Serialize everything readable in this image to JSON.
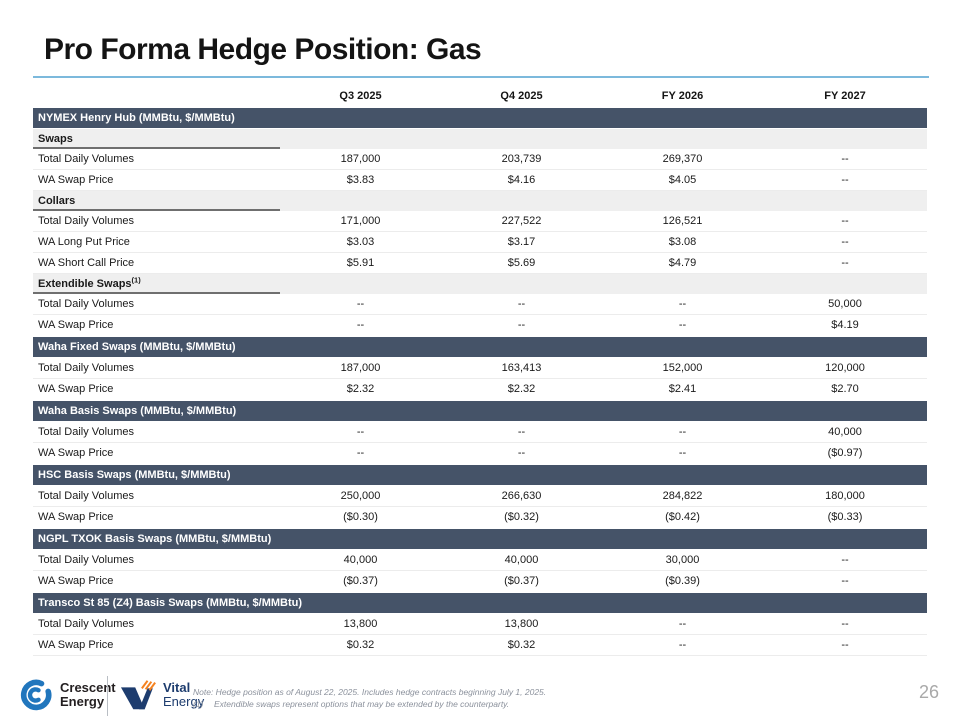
{
  "slide": {
    "title": "Pro Forma Hedge Position: Gas",
    "page_number": "26"
  },
  "table": {
    "columns": [
      "Q3 2025",
      "Q4 2025",
      "FY 2026",
      "FY 2027"
    ],
    "rows": [
      {
        "type": "section",
        "label": "NYMEX Henry Hub (MMBtu, $/MMBtu)"
      },
      {
        "type": "group",
        "label": "Swaps"
      },
      {
        "type": "data",
        "label": "Total Daily Volumes",
        "values": [
          "187,000",
          "203,739",
          "269,370",
          "--"
        ]
      },
      {
        "type": "data",
        "label": "WA Swap Price",
        "values": [
          "$3.83",
          "$4.16",
          "$4.05",
          "--"
        ]
      },
      {
        "type": "group",
        "label": "Collars"
      },
      {
        "type": "data",
        "label": "Total Daily Volumes",
        "values": [
          "171,000",
          "227,522",
          "126,521",
          "--"
        ]
      },
      {
        "type": "data",
        "label": "WA Long Put Price",
        "values": [
          "$3.03",
          "$3.17",
          "$3.08",
          "--"
        ]
      },
      {
        "type": "data",
        "label": "WA Short Call Price",
        "values": [
          "$5.91",
          "$5.69",
          "$4.79",
          "--"
        ]
      },
      {
        "type": "group",
        "label": "Extendible Swaps",
        "sup": "(1)"
      },
      {
        "type": "data",
        "label": "Total Daily Volumes",
        "values": [
          "--",
          "--",
          "--",
          "50,000"
        ]
      },
      {
        "type": "data",
        "label": "WA Swap Price",
        "values": [
          "--",
          "--",
          "--",
          "$4.19"
        ]
      },
      {
        "type": "section",
        "label": "Waha Fixed Swaps (MMBtu, $/MMBtu)"
      },
      {
        "type": "data",
        "label": "Total Daily Volumes",
        "values": [
          "187,000",
          "163,413",
          "152,000",
          "120,000"
        ]
      },
      {
        "type": "data",
        "label": "WA Swap Price",
        "values": [
          "$2.32",
          "$2.32",
          "$2.41",
          "$2.70"
        ]
      },
      {
        "type": "section",
        "label": "Waha Basis Swaps (MMBtu, $/MMBtu)"
      },
      {
        "type": "data",
        "label": "Total Daily Volumes",
        "values": [
          "--",
          "--",
          "--",
          "40,000"
        ]
      },
      {
        "type": "data",
        "label": "WA Swap Price",
        "values": [
          "--",
          "--",
          "--",
          "($0.97)"
        ]
      },
      {
        "type": "section",
        "label": "HSC Basis Swaps (MMBtu, $/MMBtu)"
      },
      {
        "type": "data",
        "label": "Total Daily Volumes",
        "values": [
          "250,000",
          "266,630",
          "284,822",
          "180,000"
        ]
      },
      {
        "type": "data",
        "label": "WA Swap Price",
        "values": [
          "($0.30)",
          "($0.32)",
          "($0.42)",
          "($0.33)"
        ]
      },
      {
        "type": "section",
        "label": "NGPL TXOK Basis Swaps (MMBtu, $/MMBtu)"
      },
      {
        "type": "data",
        "label": "Total Daily Volumes",
        "values": [
          "40,000",
          "40,000",
          "30,000",
          "--"
        ]
      },
      {
        "type": "data",
        "label": "WA Swap Price",
        "values": [
          "($0.37)",
          "($0.37)",
          "($0.39)",
          "--"
        ]
      },
      {
        "type": "section",
        "label": "Transco St 85 (Z4) Basis Swaps (MMBtu, $/MMBtu)"
      },
      {
        "type": "data",
        "label": "Total Daily Volumes",
        "values": [
          "13,800",
          "13,800",
          "--",
          "--"
        ]
      },
      {
        "type": "data",
        "label": "WA Swap Price",
        "values": [
          "$0.32",
          "$0.32",
          "--",
          "--"
        ]
      }
    ]
  },
  "footer": {
    "crescent": {
      "line1": "Crescent",
      "line2": "Energy"
    },
    "vital": {
      "line1": "Vital",
      "line2": "Energy"
    },
    "note_line1": "Note: Hedge position as of August 22, 2025. Includes hedge contracts beginning July 1, 2025.",
    "note_marker": "(1)",
    "note_line2": "Extendible swaps represent options that may be extended by the counterparty."
  },
  "colors": {
    "section_bar": "#455368",
    "group_row_bg": "#efefef",
    "title_rule": "#7cb9dc",
    "crescent_blue": "#2176bd",
    "vital_navy": "#1d3c6e",
    "vital_orange": "#f58220"
  }
}
